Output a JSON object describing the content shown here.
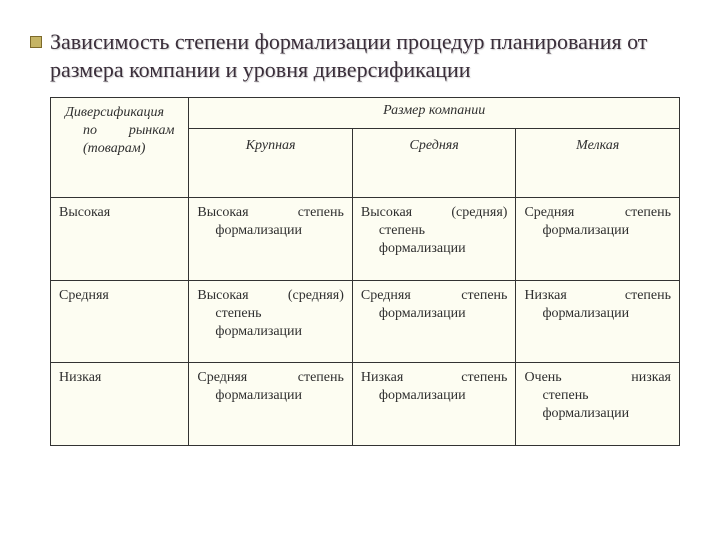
{
  "title": "Зависимость степени формализации процедур планирования от размера компании и уровня диверсификации",
  "table": {
    "header": {
      "diversification_line1": "Диверсификация",
      "diversification_line2_a": "по",
      "diversification_line2_b": "рынкам",
      "diversification_line3": "(товарам)",
      "size_group": "Размер компании",
      "size_cols": {
        "large": "Крупная",
        "medium": "Средняя",
        "small": "Мелкая"
      }
    },
    "rows": [
      {
        "label": "Высокая",
        "cells": [
          {
            "first": "Высокая",
            "mid": "степень",
            "rest": "формализации"
          },
          {
            "first": "Высокая",
            "mid": "(средняя)",
            "rest": "степень формализации"
          },
          {
            "first": "Средняя",
            "mid": "степень",
            "rest": "формализации"
          }
        ]
      },
      {
        "label": "Средняя",
        "cells": [
          {
            "first": "Высокая",
            "mid": "(средняя)",
            "rest": "степень формализации"
          },
          {
            "first": "Средняя",
            "mid": "степень",
            "rest": "формализации"
          },
          {
            "first": "Низкая",
            "mid": "степень",
            "rest": "формализации"
          }
        ]
      },
      {
        "label": "Низкая",
        "cells": [
          {
            "first": "Средняя",
            "mid": "степень",
            "rest": "формализации"
          },
          {
            "first": "Низкая",
            "mid": "степень",
            "rest": "формализации"
          },
          {
            "first": "Очень",
            "mid": "низкая",
            "rest": "степень формализации"
          }
        ]
      }
    ]
  },
  "colors": {
    "background": "#ffffff",
    "cell_bg": "#fdfdf2",
    "border": "#333333",
    "title": "#3a2e3a",
    "bullet_fill": "#c5b465",
    "bullet_border": "#7d6a2a"
  }
}
